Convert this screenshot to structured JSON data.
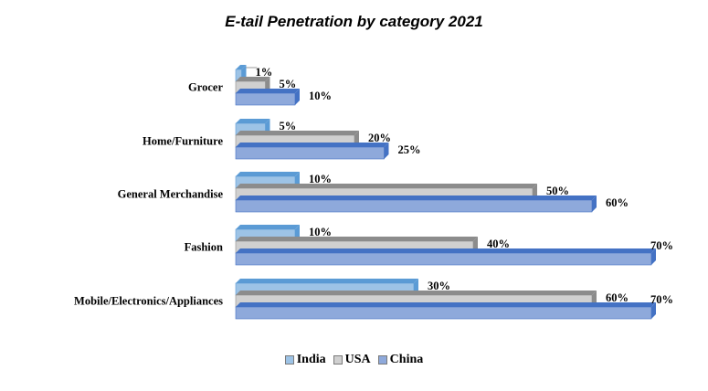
{
  "chart_data": {
    "type": "bar",
    "orientation": "horizontal",
    "title": "E-tail Penetration by category 2021",
    "categories": [
      "Grocer",
      "Home/Furniture",
      "General Merchandise",
      "Fashion",
      "Mobile/Electronics/Appliances"
    ],
    "series": [
      {
        "name": "India",
        "values": [
          1,
          5,
          10,
          10,
          30
        ],
        "labels": [
          "1%",
          "5%",
          "10%",
          "10%",
          "30%"
        ],
        "color": "#9DC3E6"
      },
      {
        "name": "USA",
        "values": [
          5,
          20,
          50,
          40,
          60
        ],
        "labels": [
          "5%",
          "20%",
          "50%",
          "40%",
          "60%"
        ],
        "color": "#D0D0D0"
      },
      {
        "name": "China",
        "values": [
          10,
          25,
          60,
          70,
          70
        ],
        "labels": [
          "10%",
          "25%",
          "60%",
          "70%",
          "70%"
        ],
        "color": "#8EA9DB"
      }
    ],
    "xlim": [
      0,
      70
    ],
    "grid": false,
    "axes_visible": false,
    "legend": "bottom",
    "three_d": true
  }
}
